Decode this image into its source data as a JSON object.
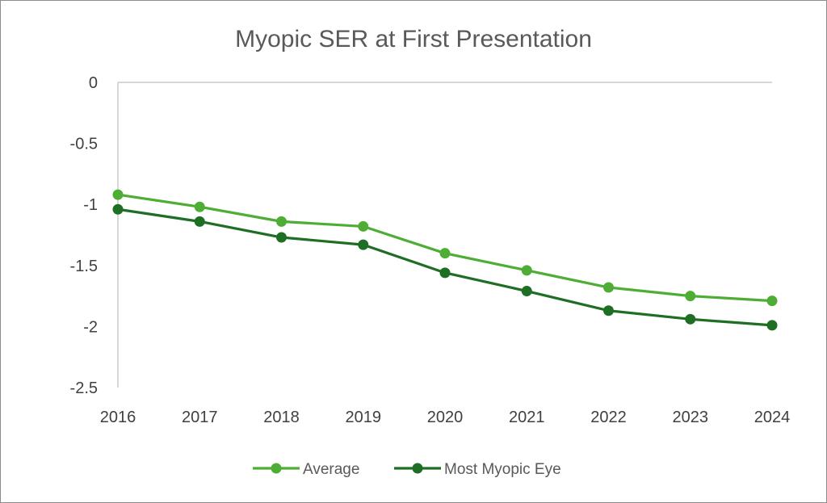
{
  "chart_data": {
    "type": "line",
    "title": "Myopic SER at First Presentation",
    "xlabel": "",
    "ylabel": "",
    "categories": [
      "2016",
      "2017",
      "2018",
      "2019",
      "2020",
      "2021",
      "2022",
      "2023",
      "2024"
    ],
    "ylim": [
      -2.5,
      0
    ],
    "yticks": [
      0,
      -0.5,
      -1,
      -1.5,
      -2,
      -2.5
    ],
    "ytick_labels": [
      "0",
      "-0.5",
      "-1",
      "-1.5",
      "-2",
      "-2.5"
    ],
    "grid": false,
    "legend_position": "bottom",
    "series": [
      {
        "name": "Average",
        "color": "#4ead34",
        "values": [
          -0.92,
          -1.02,
          -1.14,
          -1.18,
          -1.4,
          -1.54,
          -1.68,
          -1.75,
          -1.79
        ]
      },
      {
        "name": "Most Myopic Eye",
        "color": "#1e6e23",
        "values": [
          -1.04,
          -1.14,
          -1.27,
          -1.33,
          -1.56,
          -1.71,
          -1.87,
          -1.94,
          -1.99
        ]
      }
    ]
  }
}
